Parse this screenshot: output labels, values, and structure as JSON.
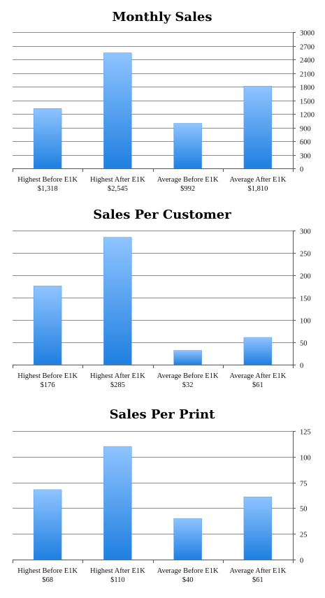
{
  "chart_data": [
    {
      "type": "bar",
      "title": "Monthly Sales",
      "categories": [
        "Highest Before E1K",
        "Highest After E1K",
        "Average Before E1K",
        "Average After E1K"
      ],
      "value_labels": [
        "$1,318",
        "$2,545",
        "$992",
        "$1,810"
      ],
      "values": [
        1318,
        2545,
        992,
        1810
      ],
      "ylim": [
        0,
        3000
      ],
      "yticks": [
        0,
        300,
        600,
        900,
        1200,
        1500,
        1800,
        2100,
        2400,
        2700,
        3000
      ],
      "grid": true,
      "bar_color_top": "#8fc4ff",
      "bar_color_bottom": "#1f7fe0"
    },
    {
      "type": "bar",
      "title": "Sales Per Customer",
      "categories": [
        "Highest Before E1K",
        "Highest After E1K",
        "Average Before E1K",
        "Average After E1K"
      ],
      "value_labels": [
        "$176",
        "$285",
        "$32",
        "$61"
      ],
      "values": [
        176,
        285,
        32,
        61
      ],
      "ylim": [
        0,
        300
      ],
      "yticks": [
        0,
        50,
        100,
        150,
        200,
        250,
        300
      ],
      "grid": true,
      "bar_color_top": "#8fc4ff",
      "bar_color_bottom": "#1f7fe0"
    },
    {
      "type": "bar",
      "title": "Sales Per Print",
      "categories": [
        "Highest Before E1K",
        "Highest After E1K",
        "Average Before E1K",
        "Average After E1K"
      ],
      "value_labels": [
        "$68",
        "$110",
        "$40",
        "$61"
      ],
      "values": [
        68,
        110,
        40,
        61
      ],
      "ylim": [
        0,
        125
      ],
      "yticks": [
        0,
        25,
        50,
        75,
        100,
        125
      ],
      "grid": true,
      "bar_color_top": "#8fc4ff",
      "bar_color_bottom": "#1f7fe0"
    }
  ]
}
